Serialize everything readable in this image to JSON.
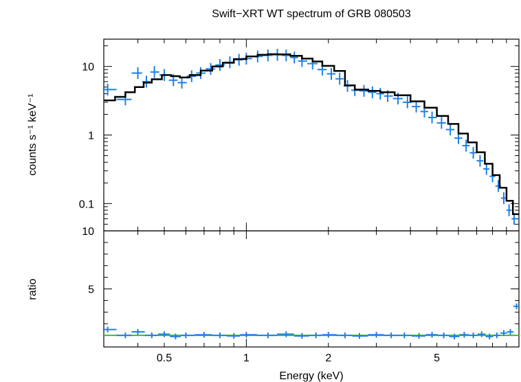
{
  "chart_data": [
    {
      "type": "scatter",
      "panel": "spectrum",
      "title": "Swift−XRT WT spectrum of GRB 080503",
      "ylabel": "counts s⁻¹ keV⁻¹",
      "xlabel": "Energy (keV)",
      "xscale": "log",
      "yscale": "log",
      "xlim": [
        0.3,
        10
      ],
      "ylim": [
        0.04,
        25
      ],
      "ytick_labels": [
        "10",
        "1",
        "0.1"
      ],
      "ytick_values": [
        10,
        1,
        0.1
      ],
      "series": [
        {
          "kind": "data",
          "color": "#1e7fe6",
          "x": [
            0.31,
            0.36,
            0.4,
            0.43,
            0.46,
            0.5,
            0.54,
            0.58,
            0.63,
            0.68,
            0.74,
            0.8,
            0.87,
            0.94,
            1.0,
            1.1,
            1.2,
            1.3,
            1.4,
            1.5,
            1.6,
            1.75,
            1.9,
            2.05,
            2.2,
            2.35,
            2.5,
            2.7,
            2.9,
            3.1,
            3.3,
            3.6,
            3.9,
            4.2,
            4.5,
            4.8,
            5.2,
            5.6,
            6.0,
            6.4,
            6.8,
            7.2,
            7.6,
            8.0,
            8.4,
            8.8,
            9.2,
            9.6
          ],
          "y": [
            4.6,
            3.3,
            8.0,
            6.0,
            8.3,
            7.5,
            6.3,
            5.8,
            7.2,
            8.0,
            9.2,
            10.5,
            11.5,
            12.5,
            13.0,
            14.0,
            14.5,
            14.8,
            14.5,
            13.5,
            12.0,
            11.0,
            9.0,
            7.8,
            6.6,
            5.2,
            4.5,
            4.4,
            4.2,
            4.0,
            3.7,
            3.4,
            3.0,
            2.6,
            2.2,
            1.8,
            1.5,
            1.2,
            0.9,
            0.7,
            0.55,
            0.42,
            0.32,
            0.25,
            0.18,
            0.12,
            0.08,
            0.06
          ]
        },
        {
          "kind": "model",
          "color": "#000000",
          "x": [
            0.3,
            0.33,
            0.36,
            0.39,
            0.42,
            0.45,
            0.49,
            0.53,
            0.57,
            0.62,
            0.68,
            0.75,
            0.82,
            0.9,
            1.0,
            1.1,
            1.2,
            1.3,
            1.45,
            1.6,
            1.75,
            1.9,
            2.1,
            2.3,
            2.5,
            2.8,
            3.1,
            3.5,
            4.0,
            4.5,
            5.0,
            5.5,
            6.0,
            6.5,
            7.0,
            7.5,
            8.0,
            8.5,
            9.0,
            9.5,
            10.0
          ],
          "y": [
            3.2,
            3.6,
            4.2,
            5.0,
            5.8,
            6.5,
            7.5,
            7.2,
            6.9,
            7.5,
            8.7,
            10.0,
            11.3,
            12.8,
            14.0,
            14.8,
            15.1,
            15.0,
            14.3,
            13.0,
            11.8,
            10.2,
            8.6,
            5.3,
            4.6,
            4.4,
            4.2,
            3.8,
            3.1,
            2.5,
            1.9,
            1.45,
            1.05,
            0.78,
            0.56,
            0.38,
            0.26,
            0.17,
            0.11,
            0.07,
            0.045
          ]
        }
      ]
    },
    {
      "type": "scatter",
      "panel": "ratio",
      "ylabel": "ratio",
      "xlabel": "Energy (keV)",
      "xscale": "log",
      "xlim": [
        0.3,
        10
      ],
      "ylim": [
        0,
        10
      ],
      "ytick_labels": [
        "10",
        "5"
      ],
      "ytick_values": [
        10,
        5
      ],
      "xtick_labels": [
        "0.5",
        "1",
        "2",
        "5"
      ],
      "xtick_values": [
        0.5,
        1,
        2,
        5
      ],
      "series": [
        {
          "kind": "data",
          "color": "#1e7fe6",
          "x": [
            0.31,
            0.36,
            0.4,
            0.45,
            0.5,
            0.55,
            0.6,
            0.7,
            0.8,
            0.9,
            1.0,
            1.2,
            1.4,
            1.6,
            1.8,
            2.0,
            2.3,
            2.6,
            3.0,
            3.4,
            3.8,
            4.3,
            4.8,
            5.3,
            5.8,
            6.3,
            6.8,
            7.3,
            7.8,
            8.3,
            8.8,
            9.3,
            9.8
          ],
          "y": [
            1.5,
            1.0,
            1.3,
            1.0,
            1.1,
            0.9,
            1.0,
            1.05,
            1.0,
            0.95,
            1.05,
            1.0,
            1.1,
            0.95,
            1.0,
            1.05,
            1.0,
            0.95,
            1.05,
            1.0,
            1.0,
            0.95,
            1.05,
            1.0,
            0.9,
            1.05,
            1.0,
            1.1,
            0.9,
            1.0,
            1.2,
            1.3,
            3.5
          ]
        },
        {
          "kind": "reference",
          "color": "#22cc22",
          "x": [
            0.3,
            10
          ],
          "y": [
            1,
            1
          ]
        }
      ]
    }
  ]
}
